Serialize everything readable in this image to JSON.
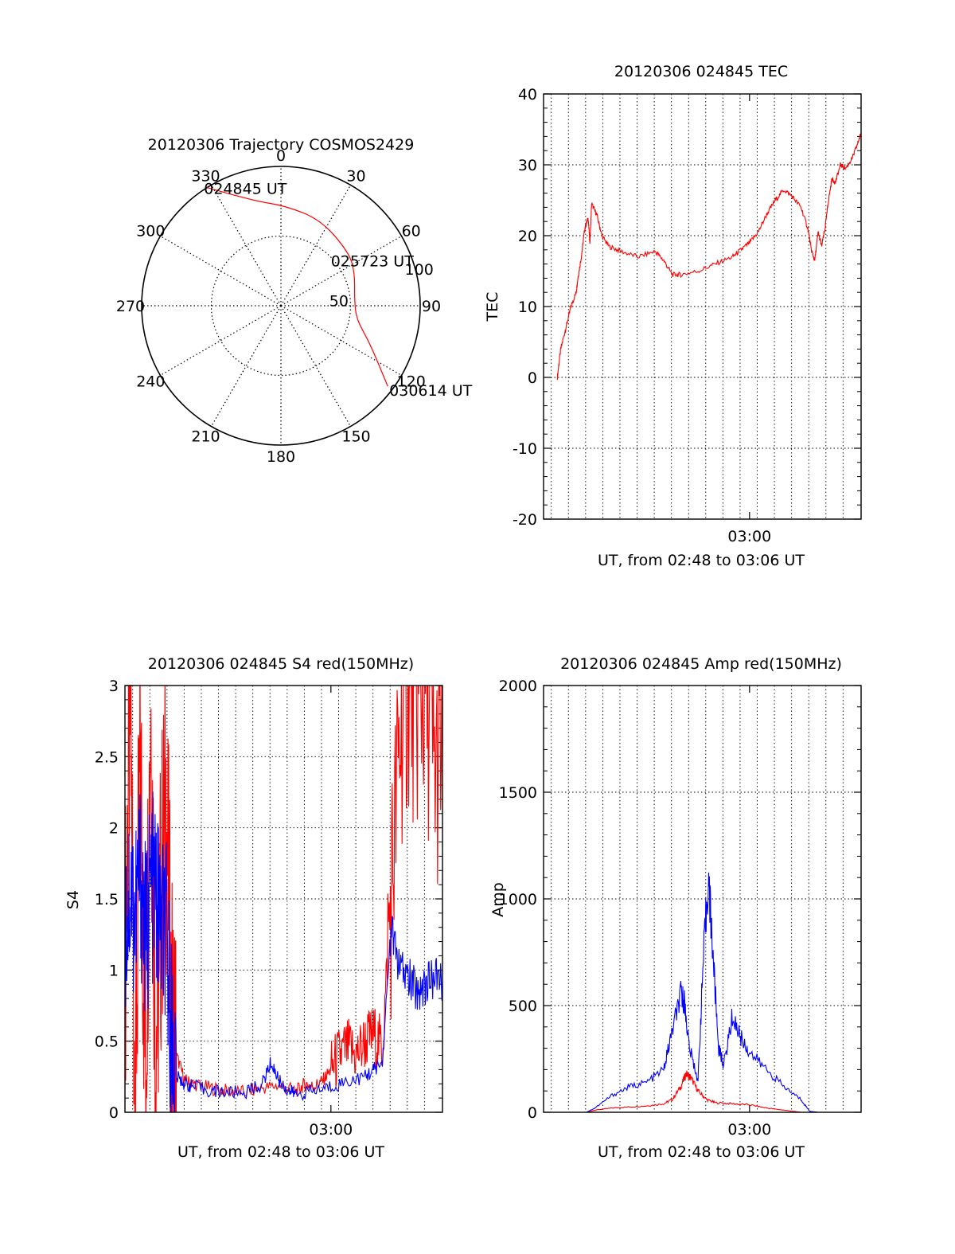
{
  "figure": {
    "date": "20120306",
    "time_axis_label": "UT, from 02:48 to 03:06 UT",
    "time_tick_label": "03:00"
  },
  "colors": {
    "red": "#ff0000",
    "blue": "#0000ff",
    "axis": "#000000",
    "grid": "#000000"
  },
  "chart_data": [
    {
      "id": "trajectory",
      "type": "polar",
      "title": "20120306 Trajectory COSMOS2429",
      "angle_labels": [
        "0",
        "30",
        "60",
        "90",
        "120",
        "150",
        "180",
        "210",
        "240",
        "270",
        "300",
        "330"
      ],
      "radial_ticks": [
        50,
        100
      ],
      "radial_max": 100,
      "series": [
        {
          "name": "COSMOS2429",
          "color": "#ff0000",
          "points": [
            {
              "az": 328,
              "r": 100
            },
            {
              "az": 345,
              "r": 78
            },
            {
              "az": 2,
              "r": 72
            },
            {
              "az": 25,
              "r": 68
            },
            {
              "az": 52,
              "r": 62
            },
            {
              "az": 66,
              "r": 58
            },
            {
              "az": 85,
              "r": 53
            },
            {
              "az": 100,
              "r": 55
            },
            {
              "az": 112,
              "r": 68
            },
            {
              "az": 121,
              "r": 82
            },
            {
              "az": 127,
              "r": 96
            }
          ]
        }
      ],
      "annotations": [
        {
          "text": "024845 UT",
          "az": 328,
          "r": 100
        },
        {
          "text": "025723 UT",
          "az": 66,
          "r": 58
        },
        {
          "text": "030614 UT",
          "az": 127,
          "r": 96
        }
      ]
    },
    {
      "id": "tec",
      "type": "line",
      "title": "20120306 024845 TEC",
      "ylabel": "TEC",
      "xlabel": "UT, from 02:48 to 03:06 UT",
      "xlim": [
        0,
        18.5
      ],
      "ylim": [
        -20,
        40
      ],
      "yticks": [
        -20,
        -10,
        0,
        10,
        20,
        30,
        40
      ],
      "xticks": [
        {
          "value": 12,
          "label": "03:00"
        }
      ],
      "series": [
        {
          "name": "TEC",
          "color": "#ff0000",
          "x": [
            0.8,
            1.0,
            1.3,
            1.6,
            1.9,
            2.0,
            2.2,
            2.4,
            2.6,
            2.7,
            2.8,
            3.1,
            3.4,
            3.8,
            4.5,
            5.5,
            6.5,
            7.0,
            7.5,
            8.0,
            9.0,
            10.0,
            11.0,
            11.5,
            12.0,
            12.5,
            13.0,
            13.5,
            14.0,
            14.5,
            15.0,
            15.4,
            15.6,
            15.8,
            16.0,
            16.2,
            16.4,
            16.6,
            16.8,
            17.0,
            17.3,
            17.6,
            18.0,
            18.3,
            18.5
          ],
          "y": [
            0,
            4,
            7,
            10,
            12,
            14,
            17,
            21,
            22.5,
            19,
            24.5,
            23,
            20,
            18.5,
            17.8,
            17,
            17.8,
            16.5,
            14.5,
            14.5,
            15,
            16,
            17,
            18,
            19,
            20.5,
            23,
            25,
            26.5,
            25.5,
            24,
            21,
            18,
            16.5,
            20.5,
            18.5,
            21,
            25,
            28,
            27.5,
            30,
            29.5,
            31,
            33,
            34.5
          ]
        }
      ]
    },
    {
      "id": "s4",
      "type": "line",
      "title": "20120306 024845 S4 red(150MHz)",
      "ylabel": "S4",
      "xlabel": "UT, from 02:48 to 03:06 UT",
      "xlim": [
        0,
        18.5
      ],
      "ylim": [
        0,
        3
      ],
      "yticks": [
        0,
        0.5,
        1,
        1.5,
        2,
        2.5,
        3
      ],
      "ytick_labels": [
        "0",
        "0.5",
        "1",
        "1.5",
        "2",
        "2.5",
        "3"
      ],
      "xticks": [
        {
          "value": 12,
          "label": "03:00"
        }
      ],
      "series": [
        {
          "name": "red",
          "color": "#ff0000",
          "x": [
            0.0,
            0.3,
            0.6,
            0.9,
            1.2,
            1.5,
            1.8,
            2.1,
            2.4,
            2.7,
            3.0,
            3.5,
            4.0,
            5.0,
            6.0,
            7.0,
            8.0,
            9.0,
            10.0,
            10.5,
            11.0,
            11.5,
            12.0,
            12.5,
            13.0,
            13.5,
            14.0,
            14.5,
            15.0,
            15.5,
            16.0,
            16.5,
            17.0,
            17.5,
            18.0,
            18.5
          ],
          "y": [
            1.0,
            3.0,
            0.1,
            2.5,
            0.3,
            3.0,
            0.5,
            1.5,
            2.2,
            0.6,
            0.4,
            0.22,
            0.2,
            0.17,
            0.15,
            0.14,
            0.17,
            0.19,
            0.15,
            0.2,
            0.18,
            0.22,
            0.3,
            0.4,
            0.45,
            0.4,
            0.5,
            0.55,
            0.45,
            1.5,
            2.6,
            3.0,
            2.8,
            3.0,
            2.4,
            2.5
          ]
        },
        {
          "name": "blue",
          "color": "#0000ff",
          "x": [
            0.0,
            0.3,
            0.6,
            0.9,
            1.2,
            1.5,
            1.8,
            2.1,
            2.4,
            2.7,
            3.0,
            3.5,
            4.0,
            5.0,
            6.0,
            7.0,
            8.0,
            8.5,
            9.0,
            9.5,
            10.0,
            11.0,
            12.0,
            13.0,
            14.0,
            14.5,
            15.0,
            15.5,
            16.0,
            16.5,
            17.0,
            17.5,
            18.0,
            18.5
          ],
          "y": [
            1.3,
            1.6,
            1.4,
            1.7,
            1.2,
            1.6,
            1.5,
            1.3,
            1.2,
            0.6,
            0.25,
            0.2,
            0.18,
            0.15,
            0.14,
            0.14,
            0.2,
            0.35,
            0.22,
            0.15,
            0.13,
            0.15,
            0.18,
            0.22,
            0.25,
            0.3,
            0.35,
            1.3,
            1.0,
            0.95,
            0.85,
            0.9,
            0.95,
            0.92
          ]
        }
      ]
    },
    {
      "id": "amp",
      "type": "line",
      "title": "20120306 024845 Amp red(150MHz)",
      "ylabel": "Amp",
      "xlabel": "UT, from 02:48 to 03:06 UT",
      "xlim": [
        0,
        18.5
      ],
      "ylim": [
        0,
        2000
      ],
      "yticks": [
        0,
        500,
        1000,
        1500,
        2000
      ],
      "xticks": [
        {
          "value": 12,
          "label": "03:00"
        }
      ],
      "series": [
        {
          "name": "red",
          "color": "#ff0000",
          "x": [
            0,
            2.5,
            3.0,
            4.0,
            5.0,
            6.0,
            7.0,
            7.5,
            8.0,
            8.3,
            8.6,
            9.0,
            9.5,
            10.0,
            11.0,
            12.0,
            13.0,
            14.0,
            15.0,
            16.0,
            18.5
          ],
          "y": [
            0,
            0,
            10,
            20,
            25,
            30,
            40,
            60,
            120,
            180,
            160,
            100,
            60,
            45,
            40,
            35,
            20,
            10,
            0,
            0,
            0
          ]
        },
        {
          "name": "blue",
          "color": "#0000ff",
          "x": [
            0,
            2.5,
            3.0,
            4.0,
            5.0,
            6.0,
            7.0,
            7.5,
            8.0,
            8.2,
            8.5,
            9.0,
            9.3,
            9.6,
            9.9,
            10.2,
            10.5,
            11.0,
            11.5,
            12.0,
            13.0,
            14.0,
            15.0,
            15.5,
            16.0,
            18.5
          ],
          "y": [
            0,
            0,
            20,
            80,
            120,
            140,
            200,
            380,
            550,
            520,
            300,
            150,
            700,
            1100,
            700,
            300,
            220,
            450,
            350,
            280,
            200,
            120,
            60,
            5,
            0,
            0
          ]
        }
      ]
    }
  ]
}
